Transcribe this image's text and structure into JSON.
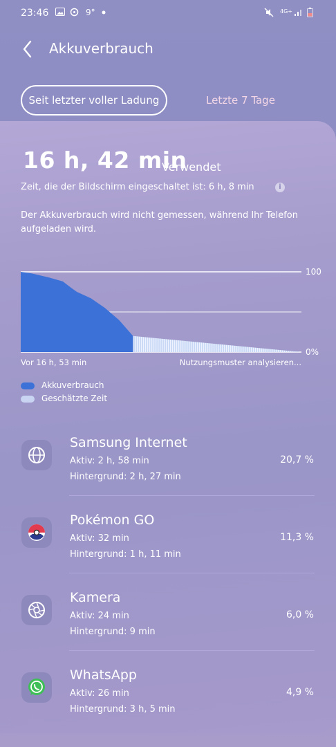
{
  "status": {
    "time": "23:46",
    "weather": "9°",
    "network": "4G+"
  },
  "header": {
    "title": "Akkuverbrauch"
  },
  "tabs": [
    {
      "label": "Seit letzter voller Ladung"
    },
    {
      "label": "Letzte 7 Tage"
    }
  ],
  "summary": {
    "used_value": "16 h, 42 min",
    "used_suffix": "Verwendet",
    "screen_on": "Zeit, die der Bildschirm eingeschaltet ist: 6 h, 8 min",
    "note": "Der Akkuverbrauch wird nicht gemessen, während Ihr Telefon aufgeladen wird."
  },
  "chart_data": {
    "type": "area",
    "x_start_label": "Vor 16 h, 53 min",
    "x_end_label": "Nutzungsmuster analysieren...",
    "y_tick_labels": [
      "100",
      "0%"
    ],
    "ylim": [
      0,
      100
    ],
    "series": [
      {
        "name": "Akkuverbrauch",
        "x_fraction": [
          0,
          0.04,
          0.1,
          0.15,
          0.18,
          0.2,
          0.25,
          0.3,
          0.35,
          0.38,
          0.4
        ],
        "values": [
          100,
          98,
          93,
          88,
          80,
          75,
          67,
          55,
          40,
          28,
          20
        ]
      },
      {
        "name": "Geschätzte Zeit",
        "x_fraction": [
          0.4,
          1.0
        ],
        "values": [
          20,
          0
        ]
      }
    ],
    "colors": {
      "used": "#3c72d8",
      "estimated": "#d6e6ff"
    }
  },
  "legend": [
    {
      "label": "Akkuverbrauch"
    },
    {
      "label": "Geschätzte Zeit"
    }
  ],
  "apps": [
    {
      "name": "Samsung Internet",
      "active": "Aktiv: 2 h, 58 min",
      "background": "Hintergrund: 2 h, 27 min",
      "percent": "20,7 %",
      "icon": "globe-icon"
    },
    {
      "name": "Pokémon GO",
      "active": "Aktiv: 32 min",
      "background": "Hintergrund: 1 h, 11 min",
      "percent": "11,3 %",
      "icon": "pokeball-icon"
    },
    {
      "name": "Kamera",
      "active": "Aktiv: 24 min",
      "background": "Hintergrund: 9 min",
      "percent": "6,0 %",
      "icon": "camera-aperture-icon"
    },
    {
      "name": "WhatsApp",
      "active": "Aktiv: 26 min",
      "background": "Hintergrund: 3 h, 5 min",
      "percent": "4,9 %",
      "icon": "whatsapp-icon"
    }
  ]
}
